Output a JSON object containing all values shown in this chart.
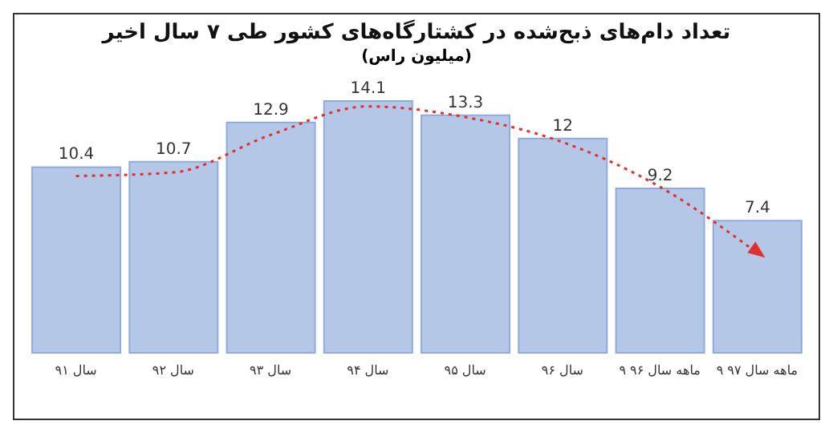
{
  "chart_data": {
    "type": "bar",
    "title": "تعداد دام‌های ذبح‌شده در کشتارگاه‌های کشور طی ۷ سال اخیر",
    "subtitle": "(میلیون راس)",
    "categories": [
      "سال ۹۱",
      "سال ۹۲",
      "سال ۹۳",
      "سال ۹۴",
      "سال ۹۵",
      "سال ۹۶",
      "۹ ماهه سال ۹۶",
      "۹ ماهه سال ۹۷"
    ],
    "series": [
      {
        "color": "#b4c7e7",
        "values": [
          10.4,
          10.7,
          12.9,
          14.1,
          13.3,
          12,
          9.2,
          7.4
        ],
        "value_labels": [
          "10.4",
          "10.7",
          "12.9",
          "14.1",
          "13.3",
          "12",
          "9.2",
          "7.4"
        ]
      },
      {
        "type": "line",
        "color": "#e03030",
        "line_style": "dotted",
        "marker": "none",
        "values": [
          9.9,
          10.1,
          12.2,
          13.8,
          13.2,
          11.8,
          9.3,
          5.6
        ]
      }
    ],
    "grid": false,
    "legend": false,
    "tick_labels": "x"
  }
}
